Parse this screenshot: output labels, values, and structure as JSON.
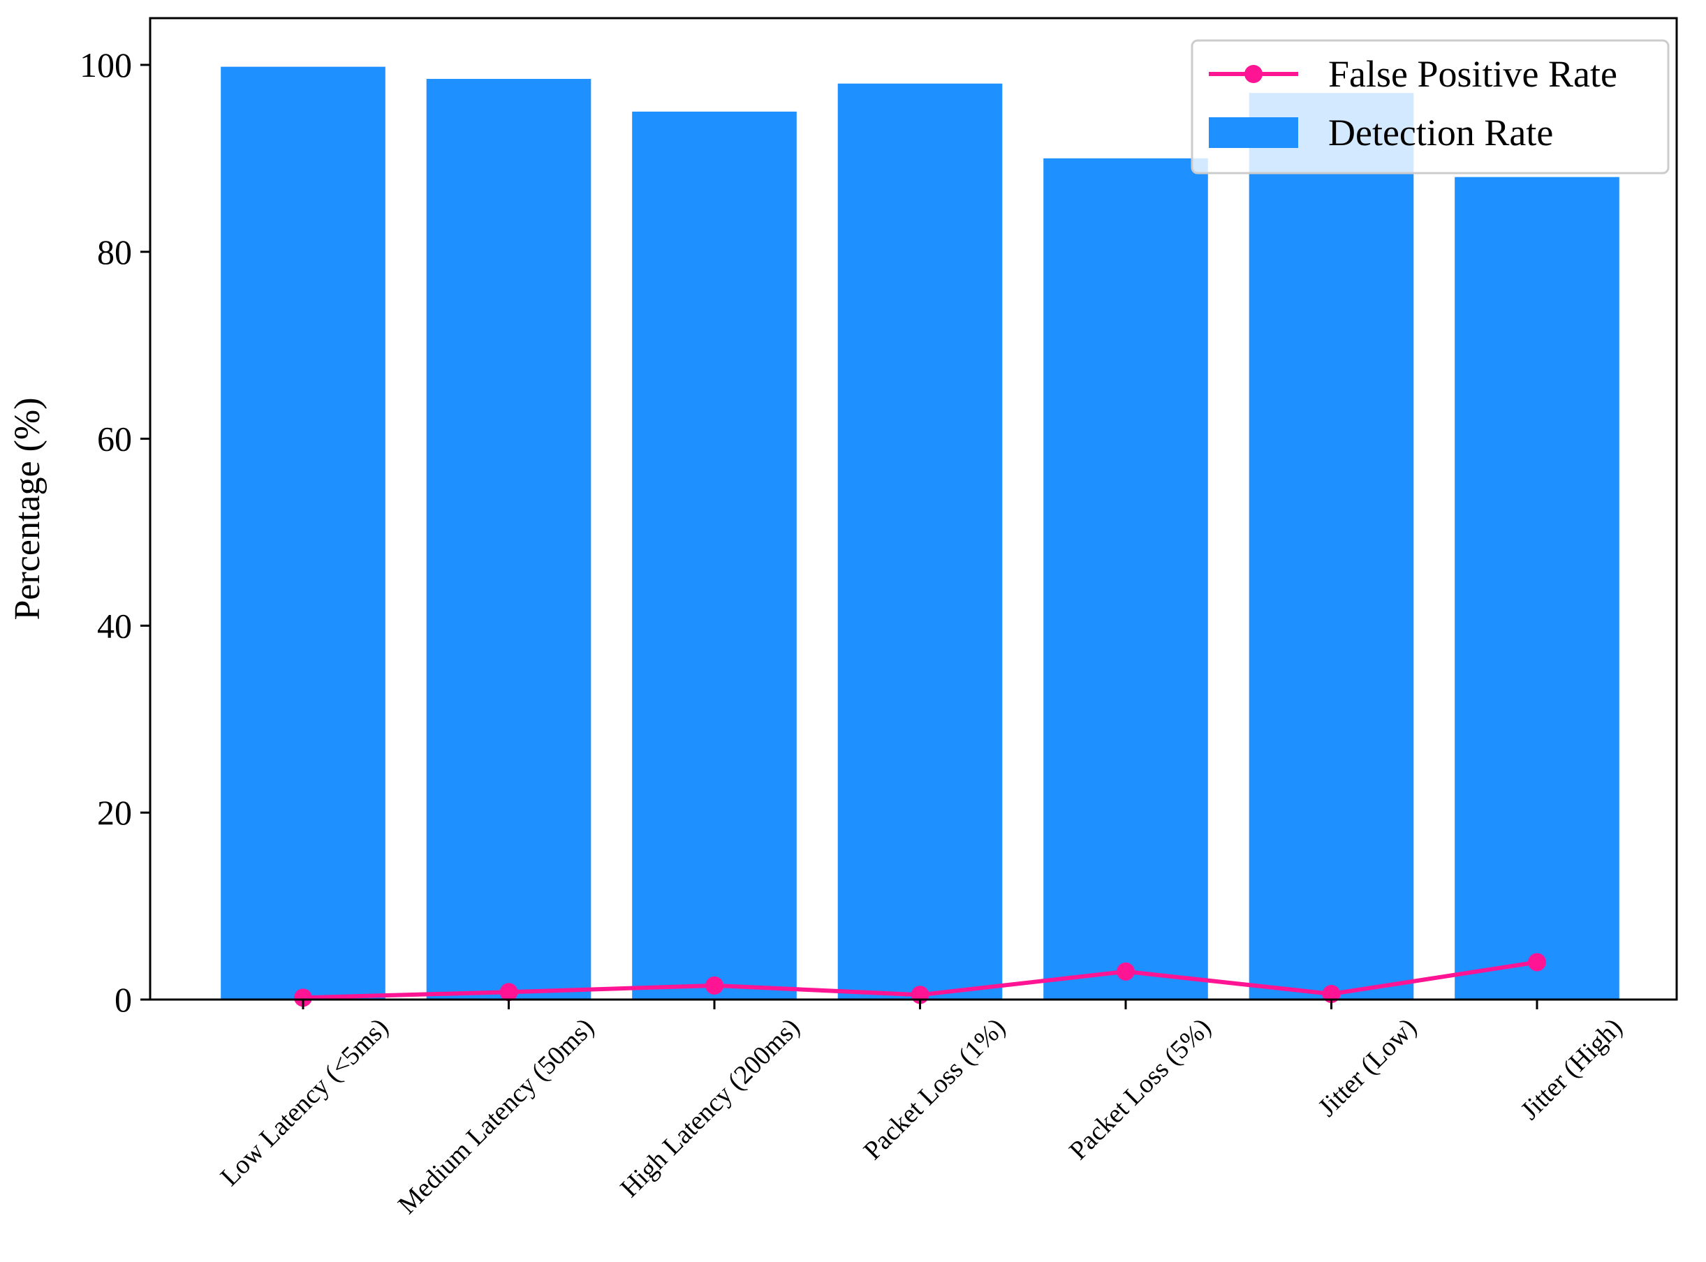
{
  "chart_data": {
    "type": "bar",
    "categories": [
      "Low Latency (<5ms)",
      "Medium Latency (50ms)",
      "High Latency (200ms)",
      "Packet Loss (1%)",
      "Packet Loss (5%)",
      "Jitter (Low)",
      "Jitter (High)"
    ],
    "series": [
      {
        "name": "Detection Rate",
        "kind": "bar",
        "color": "#1E90FF",
        "values": [
          99.8,
          98.5,
          95.0,
          98.0,
          90.0,
          97.0,
          88.0
        ]
      },
      {
        "name": "False Positive Rate",
        "kind": "line",
        "color": "#FF1493",
        "marker": "circle",
        "values": [
          0.2,
          0.8,
          1.5,
          0.5,
          3.0,
          0.6,
          4.0
        ]
      }
    ],
    "title": "",
    "xlabel": "",
    "ylabel": "Percentage (%)",
    "ylim": [
      0,
      105
    ],
    "yticks": [
      0,
      20,
      40,
      60,
      80,
      100
    ],
    "grid": false,
    "legend": {
      "placement": "top-right",
      "order": [
        "False Positive Rate",
        "Detection Rate"
      ]
    }
  }
}
